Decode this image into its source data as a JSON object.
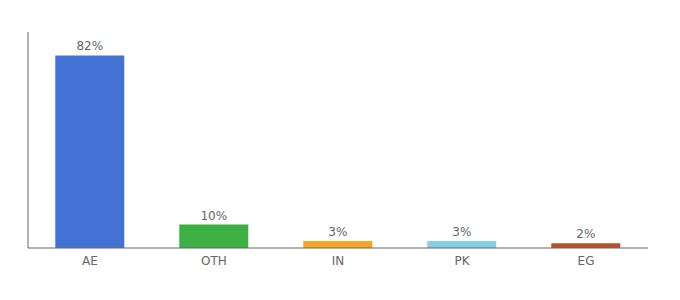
{
  "chart_data": {
    "type": "bar",
    "categories": [
      "AE",
      "OTH",
      "IN",
      "PK",
      "EG"
    ],
    "values": [
      82,
      10,
      3,
      3,
      2
    ],
    "value_labels": [
      "82%",
      "10%",
      "3%",
      "3%",
      "2%"
    ],
    "colors": [
      "#4472d4",
      "#3cb043",
      "#f5a623",
      "#87ceeb",
      "#b8502a"
    ],
    "ylim": [
      0,
      92
    ],
    "data_labels": true,
    "tick_labels": "x"
  }
}
